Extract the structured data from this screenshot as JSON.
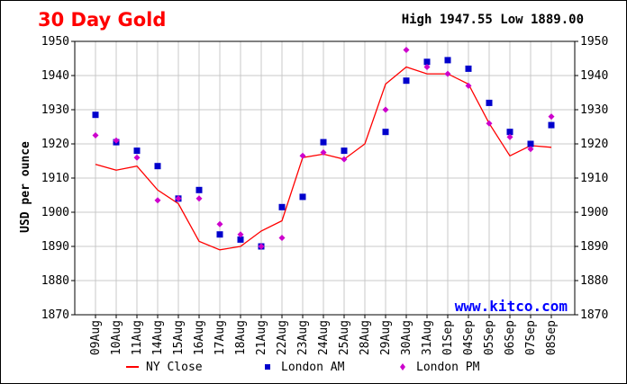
{
  "header": {
    "title": "30 Day Gold",
    "high_low": "High 1947.55 Low 1889.00"
  },
  "watermark": "www.kitco.com",
  "chart_data": {
    "type": "line",
    "title": "30 Day Gold",
    "ylabel": "USD per ounce",
    "xlabel": "",
    "ylim": [
      1870,
      1950
    ],
    "yticks": [
      1870,
      1880,
      1890,
      1900,
      1910,
      1920,
      1930,
      1940,
      1950
    ],
    "grid": true,
    "categories": [
      "09Aug",
      "10Aug",
      "11Aug",
      "14Aug",
      "15Aug",
      "16Aug",
      "17Aug",
      "18Aug",
      "21Aug",
      "22Aug",
      "23Aug",
      "24Aug",
      "25Aug",
      "28Aug",
      "29Aug",
      "30Aug",
      "31Aug",
      "01Sep",
      "04Sep",
      "05Sep",
      "06Sep",
      "07Sep",
      "08Sep"
    ],
    "series": [
      {
        "name": "NY Close",
        "style": "line",
        "color": "#ff0000",
        "values": [
          1914.0,
          1912.3,
          1913.5,
          1906.5,
          1902.5,
          1891.5,
          1889.0,
          1890.0,
          1894.5,
          1897.5,
          1916.0,
          1917.0,
          1915.5,
          1920.0,
          1937.5,
          1942.5,
          1940.5,
          1940.5,
          1937.5,
          1926.0,
          1916.5,
          1919.5,
          1919.0
        ]
      },
      {
        "name": "London AM",
        "style": "square",
        "color": "#0000cc",
        "values": [
          1928.5,
          1920.5,
          1918.0,
          1913.5,
          1904.0,
          1906.5,
          1893.5,
          1892.0,
          1890.0,
          1901.5,
          1904.5,
          1920.5,
          1918.0,
          null,
          1923.5,
          1938.5,
          1944.0,
          1944.5,
          1942.0,
          1932.0,
          1923.5,
          1920.0,
          1925.5
        ]
      },
      {
        "name": "London PM",
        "style": "diamond",
        "color": "#cc00cc",
        "values": [
          1922.5,
          1921.0,
          1916.0,
          1903.5,
          1904.0,
          1904.0,
          1896.5,
          1893.5,
          1890.0,
          1892.5,
          1916.5,
          1917.5,
          1915.5,
          null,
          1930.0,
          1947.5,
          1942.5,
          1940.5,
          1937.0,
          1926.0,
          1922.0,
          1918.5,
          1928.0
        ]
      }
    ],
    "legend_position": "bottom"
  }
}
